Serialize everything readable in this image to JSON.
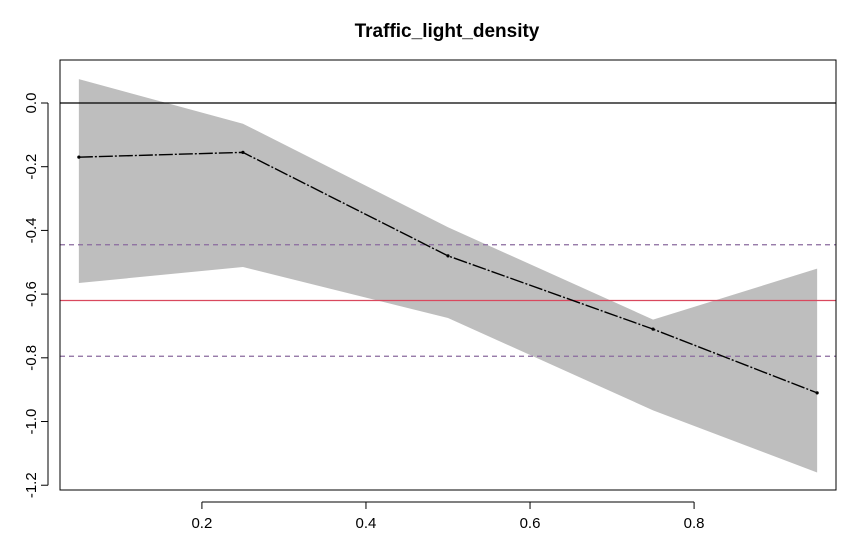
{
  "chart_data": {
    "type": "line",
    "title": "Traffic_light_density",
    "xlabel": "",
    "ylabel": "",
    "xlim": [
      0.027,
      0.973
    ],
    "ylim": [
      -1.215,
      0.135
    ],
    "x_ticks": [
      0.2,
      0.4,
      0.6,
      0.8
    ],
    "x_tick_labels": [
      "0.2",
      "0.4",
      "0.6",
      "0.8"
    ],
    "y_ticks": [
      0.0,
      -0.2,
      -0.4,
      -0.6,
      -0.8,
      -1.0,
      -1.2
    ],
    "y_tick_labels": [
      "0.0",
      "-0.2",
      "-0.4",
      "-0.6",
      "-0.8",
      "-1.0",
      "-1.2"
    ],
    "grid": false,
    "series": [
      {
        "x": [
          0.05,
          0.25,
          0.5,
          0.75,
          0.95
        ],
        "values": [
          -0.17,
          -0.155,
          -0.48,
          -0.71,
          -0.91
        ],
        "upper": [
          0.075,
          -0.065,
          -0.39,
          -0.68,
          -0.52
        ],
        "lower": [
          -0.565,
          -0.515,
          -0.675,
          -0.965,
          -1.16
        ]
      }
    ],
    "reference_lines": [
      {
        "y": 0.0,
        "color": "#000000",
        "style": "solid"
      },
      {
        "y": -0.62,
        "color": "#d9485e",
        "style": "solid"
      },
      {
        "y": -0.445,
        "color": "#8a6a9e",
        "style": "dashed"
      },
      {
        "y": -0.795,
        "color": "#8a6a9e",
        "style": "dashed"
      }
    ],
    "colors": {
      "band": "#bebebe",
      "line": "#000000",
      "axis": "#000000"
    }
  }
}
